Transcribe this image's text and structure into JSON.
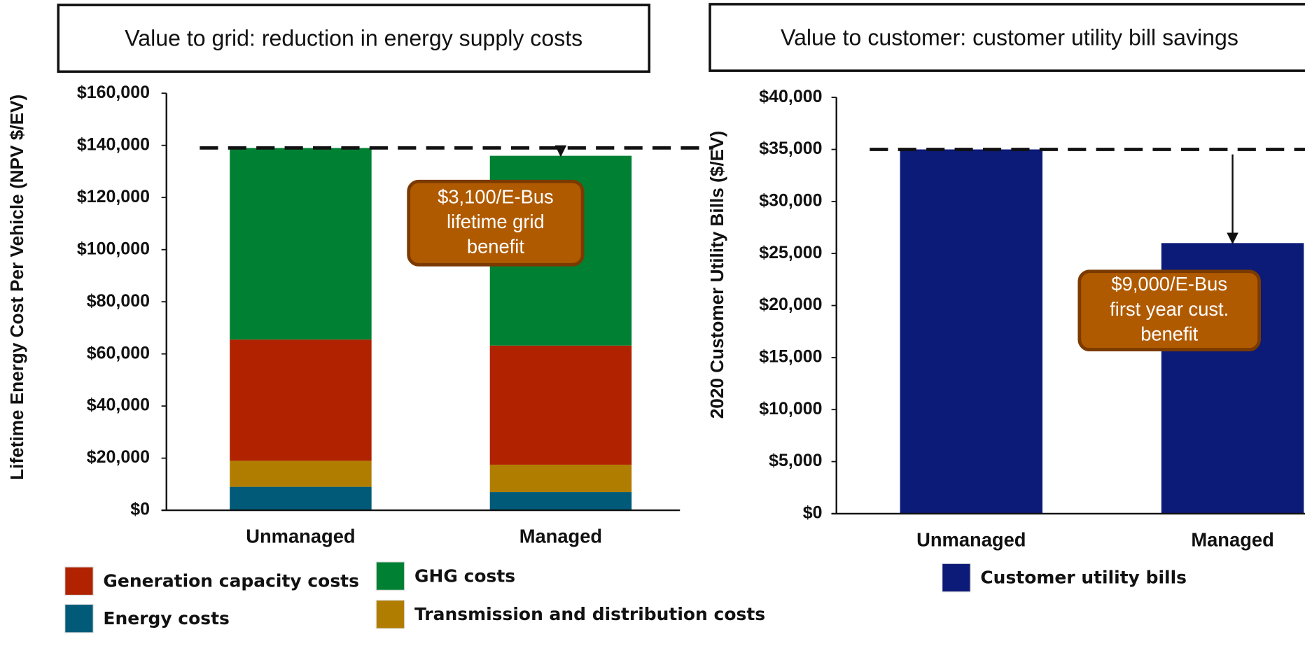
{
  "chart_data": [
    {
      "type": "stacked-bar",
      "title": "Value to grid: reduction in energy supply costs",
      "y_label": "Lifetime Energy Cost Per Vehicle (NPV $/EV)",
      "categories": [
        "Unmanaged",
        "Managed"
      ],
      "series": [
        {
          "name": "Energy costs",
          "color": "#005a78",
          "values": [
            9000,
            7000
          ]
        },
        {
          "name": "Transmission and distribution costs",
          "color": "#b07d00",
          "values": [
            10000,
            10500
          ]
        },
        {
          "name": "Generation capacity costs",
          "color": "#b02200",
          "values": [
            46500,
            45700
          ]
        },
        {
          "name": "GHG costs",
          "color": "#008033",
          "values": [
            73500,
            72800
          ]
        }
      ],
      "ylim": [
        0,
        160000
      ],
      "yticks": [
        {
          "value": 0,
          "label": "$0"
        },
        {
          "value": 20000,
          "label": "$20,000"
        },
        {
          "value": 40000,
          "label": "$40,000"
        },
        {
          "value": 60000,
          "label": "$60,000"
        },
        {
          "value": 80000,
          "label": "$80,000"
        },
        {
          "value": 100000,
          "label": "$100,000"
        },
        {
          "value": 120000,
          "label": "$120,000"
        },
        {
          "value": 140000,
          "label": "$140,000"
        },
        {
          "value": 160000,
          "label": "$160,000"
        }
      ],
      "annotation": [
        "$3,100/E-Bus",
        "lifetime grid",
        "benefit"
      ]
    },
    {
      "type": "bar",
      "title": "Value to customer: customer utility bill savings",
      "y_label": "2020 Customer Utility Bills ($/EV)",
      "categories": [
        "Unmanaged",
        "Managed"
      ],
      "series": [
        {
          "name": "Customer utility bills",
          "color": "#0c1a78",
          "values": [
            35000,
            26000
          ]
        }
      ],
      "ylim": [
        0,
        40000
      ],
      "yticks": [
        {
          "value": 0,
          "label": "$0"
        },
        {
          "value": 5000,
          "label": "$5,000"
        },
        {
          "value": 10000,
          "label": "$10,000"
        },
        {
          "value": 15000,
          "label": "$15,000"
        },
        {
          "value": 20000,
          "label": "$20,000"
        },
        {
          "value": 25000,
          "label": "$25,000"
        },
        {
          "value": 30000,
          "label": "$30,000"
        },
        {
          "value": 35000,
          "label": "$35,000"
        },
        {
          "value": 40000,
          "label": "$40,000"
        }
      ],
      "annotation": [
        "$9,000/E-Bus",
        "first year cust.",
        "benefit"
      ]
    }
  ]
}
